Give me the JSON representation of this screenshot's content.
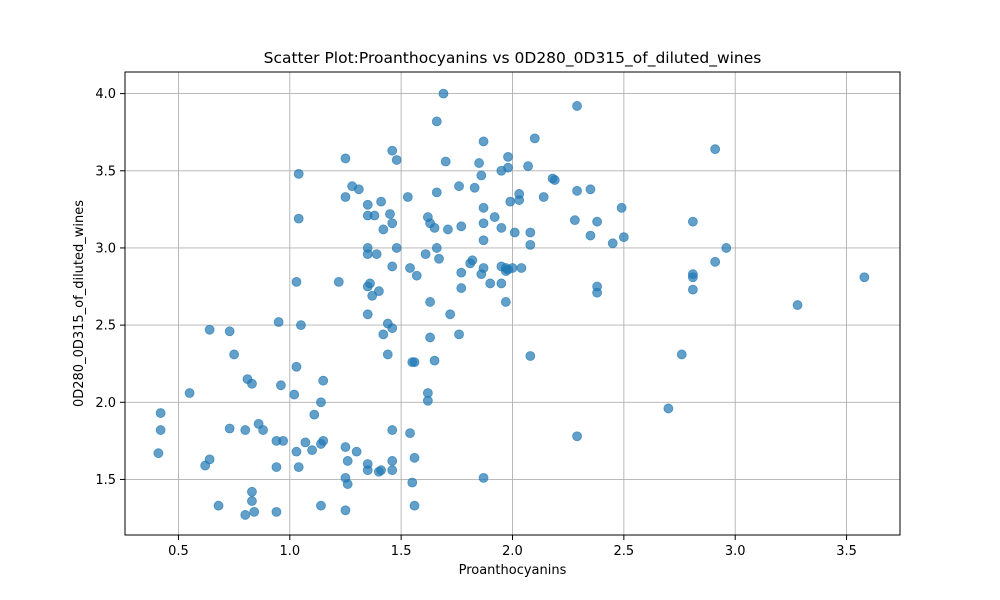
{
  "chart_data": {
    "type": "scatter",
    "title": "Scatter Plot:Proanthocyanins vs 0D280_0D315_of_diluted_wines",
    "xlabel": "Proanthocyanins",
    "ylabel": "0D280_0D315_of_diluted_wines",
    "xlim": [
      0.26,
      3.74
    ],
    "ylim": [
      1.14,
      4.14
    ],
    "xticks": [
      0.5,
      1.0,
      1.5,
      2.0,
      2.5,
      3.0,
      3.5
    ],
    "xtick_labels": [
      "0.5",
      "1.0",
      "1.5",
      "2.0",
      "2.5",
      "3.0",
      "3.5"
    ],
    "yticks": [
      1.5,
      2.0,
      2.5,
      3.0,
      3.5,
      4.0
    ],
    "ytick_labels": [
      "1.5",
      "2.0",
      "2.5",
      "3.0",
      "3.5",
      "4.0"
    ],
    "grid": true,
    "marker_color": "#1f77b4",
    "marker_alpha": 0.7,
    "points": [
      [
        1.69,
        4.0
      ],
      [
        2.29,
        3.92
      ],
      [
        1.66,
        3.82
      ],
      [
        2.1,
        3.71
      ],
      [
        1.87,
        3.69
      ],
      [
        2.91,
        3.64
      ],
      [
        1.46,
        3.63
      ],
      [
        1.25,
        3.58
      ],
      [
        1.98,
        3.59
      ],
      [
        1.48,
        3.57
      ],
      [
        1.7,
        3.56
      ],
      [
        1.85,
        3.55
      ],
      [
        2.07,
        3.53
      ],
      [
        1.98,
        3.52
      ],
      [
        1.95,
        3.5
      ],
      [
        1.04,
        3.48
      ],
      [
        1.86,
        3.47
      ],
      [
        2.18,
        3.45
      ],
      [
        2.19,
        3.44
      ],
      [
        1.28,
        3.4
      ],
      [
        1.76,
        3.4
      ],
      [
        1.31,
        3.38
      ],
      [
        1.83,
        3.39
      ],
      [
        2.35,
        3.38
      ],
      [
        1.66,
        3.36
      ],
      [
        2.29,
        3.37
      ],
      [
        2.03,
        3.35
      ],
      [
        1.25,
        3.33
      ],
      [
        1.53,
        3.33
      ],
      [
        2.14,
        3.33
      ],
      [
        1.99,
        3.3
      ],
      [
        2.03,
        3.31
      ],
      [
        1.41,
        3.3
      ],
      [
        1.35,
        3.28
      ],
      [
        2.49,
        3.26
      ],
      [
        1.87,
        3.26
      ],
      [
        1.35,
        3.21
      ],
      [
        1.38,
        3.21
      ],
      [
        1.45,
        3.22
      ],
      [
        1.62,
        3.2
      ],
      [
        1.92,
        3.2
      ],
      [
        1.04,
        3.19
      ],
      [
        2.28,
        3.18
      ],
      [
        2.38,
        3.17
      ],
      [
        2.81,
        3.17
      ],
      [
        1.46,
        3.16
      ],
      [
        1.63,
        3.16
      ],
      [
        1.87,
        3.16
      ],
      [
        1.77,
        3.14
      ],
      [
        1.42,
        3.12
      ],
      [
        1.65,
        3.13
      ],
      [
        1.71,
        3.12
      ],
      [
        1.95,
        3.13
      ],
      [
        2.01,
        3.1
      ],
      [
        2.08,
        3.1
      ],
      [
        2.35,
        3.08
      ],
      [
        2.5,
        3.07
      ],
      [
        1.87,
        3.05
      ],
      [
        2.45,
        3.03
      ],
      [
        2.08,
        3.02
      ],
      [
        1.35,
        3.0
      ],
      [
        1.48,
        3.0
      ],
      [
        1.66,
        3.0
      ],
      [
        2.96,
        3.0
      ],
      [
        1.35,
        2.96
      ],
      [
        1.39,
        2.96
      ],
      [
        1.61,
        2.96
      ],
      [
        1.67,
        2.93
      ],
      [
        1.82,
        2.92
      ],
      [
        2.91,
        2.91
      ],
      [
        1.81,
        2.9
      ],
      [
        1.46,
        2.88
      ],
      [
        1.87,
        2.87
      ],
      [
        1.95,
        2.88
      ],
      [
        1.97,
        2.87
      ],
      [
        2.0,
        2.87
      ],
      [
        2.04,
        2.87
      ],
      [
        1.54,
        2.87
      ],
      [
        1.97,
        2.85
      ],
      [
        1.98,
        2.86
      ],
      [
        1.77,
        2.84
      ],
      [
        1.86,
        2.83
      ],
      [
        2.81,
        2.83
      ],
      [
        1.57,
        2.82
      ],
      [
        2.81,
        2.81
      ],
      [
        3.58,
        2.81
      ],
      [
        1.22,
        2.78
      ],
      [
        1.36,
        2.77
      ],
      [
        1.35,
        2.75
      ],
      [
        1.03,
        2.78
      ],
      [
        1.9,
        2.77
      ],
      [
        1.95,
        2.77
      ],
      [
        2.38,
        2.75
      ],
      [
        1.77,
        2.74
      ],
      [
        2.81,
        2.73
      ],
      [
        1.4,
        2.72
      ],
      [
        2.38,
        2.71
      ],
      [
        1.37,
        2.69
      ],
      [
        1.63,
        2.65
      ],
      [
        1.97,
        2.65
      ],
      [
        3.28,
        2.63
      ],
      [
        1.72,
        2.57
      ],
      [
        1.35,
        2.57
      ],
      [
        0.95,
        2.52
      ],
      [
        1.44,
        2.51
      ],
      [
        1.05,
        2.5
      ],
      [
        1.46,
        2.48
      ],
      [
        0.64,
        2.47
      ],
      [
        0.73,
        2.46
      ],
      [
        1.42,
        2.44
      ],
      [
        1.76,
        2.44
      ],
      [
        1.63,
        2.42
      ],
      [
        0.75,
        2.31
      ],
      [
        1.44,
        2.31
      ],
      [
        2.76,
        2.31
      ],
      [
        2.08,
        2.3
      ],
      [
        1.65,
        2.27
      ],
      [
        1.56,
        2.26
      ],
      [
        1.55,
        2.26
      ],
      [
        1.03,
        2.23
      ],
      [
        0.81,
        2.15
      ],
      [
        1.15,
        2.14
      ],
      [
        0.83,
        2.12
      ],
      [
        0.96,
        2.11
      ],
      [
        0.55,
        2.06
      ],
      [
        1.62,
        2.06
      ],
      [
        1.02,
        2.05
      ],
      [
        1.62,
        2.01
      ],
      [
        1.14,
        2.0
      ],
      [
        2.7,
        1.96
      ],
      [
        0.42,
        1.93
      ],
      [
        1.11,
        1.92
      ],
      [
        0.86,
        1.86
      ],
      [
        0.42,
        1.82
      ],
      [
        0.73,
        1.83
      ],
      [
        0.8,
        1.82
      ],
      [
        0.88,
        1.82
      ],
      [
        1.46,
        1.82
      ],
      [
        1.54,
        1.8
      ],
      [
        2.29,
        1.78
      ],
      [
        0.94,
        1.75
      ],
      [
        0.97,
        1.75
      ],
      [
        1.15,
        1.75
      ],
      [
        1.07,
        1.74
      ],
      [
        1.14,
        1.73
      ],
      [
        1.25,
        1.71
      ],
      [
        1.1,
        1.69
      ],
      [
        1.03,
        1.68
      ],
      [
        1.3,
        1.68
      ],
      [
        0.41,
        1.67
      ],
      [
        1.56,
        1.64
      ],
      [
        0.64,
        1.63
      ],
      [
        1.26,
        1.62
      ],
      [
        1.46,
        1.62
      ],
      [
        1.35,
        1.6
      ],
      [
        0.62,
        1.59
      ],
      [
        0.94,
        1.58
      ],
      [
        1.04,
        1.58
      ],
      [
        1.35,
        1.56
      ],
      [
        1.4,
        1.55
      ],
      [
        1.41,
        1.56
      ],
      [
        1.46,
        1.56
      ],
      [
        1.25,
        1.51
      ],
      [
        1.87,
        1.51
      ],
      [
        1.26,
        1.47
      ],
      [
        1.55,
        1.48
      ],
      [
        0.83,
        1.42
      ],
      [
        0.83,
        1.36
      ],
      [
        0.68,
        1.33
      ],
      [
        1.14,
        1.33
      ],
      [
        1.56,
        1.33
      ],
      [
        1.25,
        1.3
      ],
      [
        0.84,
        1.29
      ],
      [
        0.94,
        1.29
      ],
      [
        0.8,
        1.27
      ]
    ]
  }
}
